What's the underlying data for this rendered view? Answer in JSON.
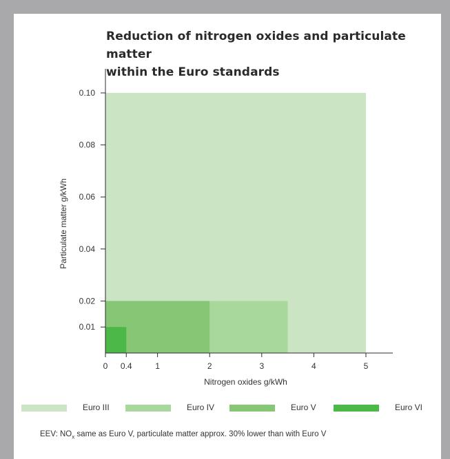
{
  "chart_data": {
    "type": "area",
    "title": "Reduction of nitrogen oxides and particulate matter within the Euro standards",
    "title_lines": [
      "Reduction of nitrogen oxides and particulate matter",
      "within the Euro standards"
    ],
    "xlabel": "Nitrogen oxides g/kWh",
    "ylabel": "Particulate matter g/kWh",
    "x_ticks": [
      0,
      0.4,
      1,
      2,
      3,
      4,
      5
    ],
    "x_tick_labels": [
      "0",
      "0.4",
      "1",
      "2",
      "3",
      "4",
      "5"
    ],
    "y_ticks": [
      0.01,
      0.02,
      0.04,
      0.06,
      0.08,
      0.1
    ],
    "y_tick_labels": [
      "0.01",
      "0.02",
      "0.04",
      "0.06",
      "0.08",
      "0.10"
    ],
    "xlim": [
      0,
      5.5
    ],
    "ylim": [
      0,
      0.1
    ],
    "series": [
      {
        "name": "Euro III",
        "nox": 5,
        "pm": 0.1,
        "color": "#cbe5c4"
      },
      {
        "name": "Euro IV",
        "nox": 3.5,
        "pm": 0.02,
        "color": "#a9d89d"
      },
      {
        "name": "Euro V",
        "nox": 2,
        "pm": 0.02,
        "color": "#86c675"
      },
      {
        "name": "Euro VI",
        "nox": 0.4,
        "pm": 0.01,
        "color": "#4cb848"
      }
    ],
    "legend_position": "bottom"
  },
  "footnote": {
    "prefix": "EEV: NO",
    "sub": "x",
    "suffix": " same as Euro V, particulate matter approx. 30% lower than with Euro V"
  }
}
